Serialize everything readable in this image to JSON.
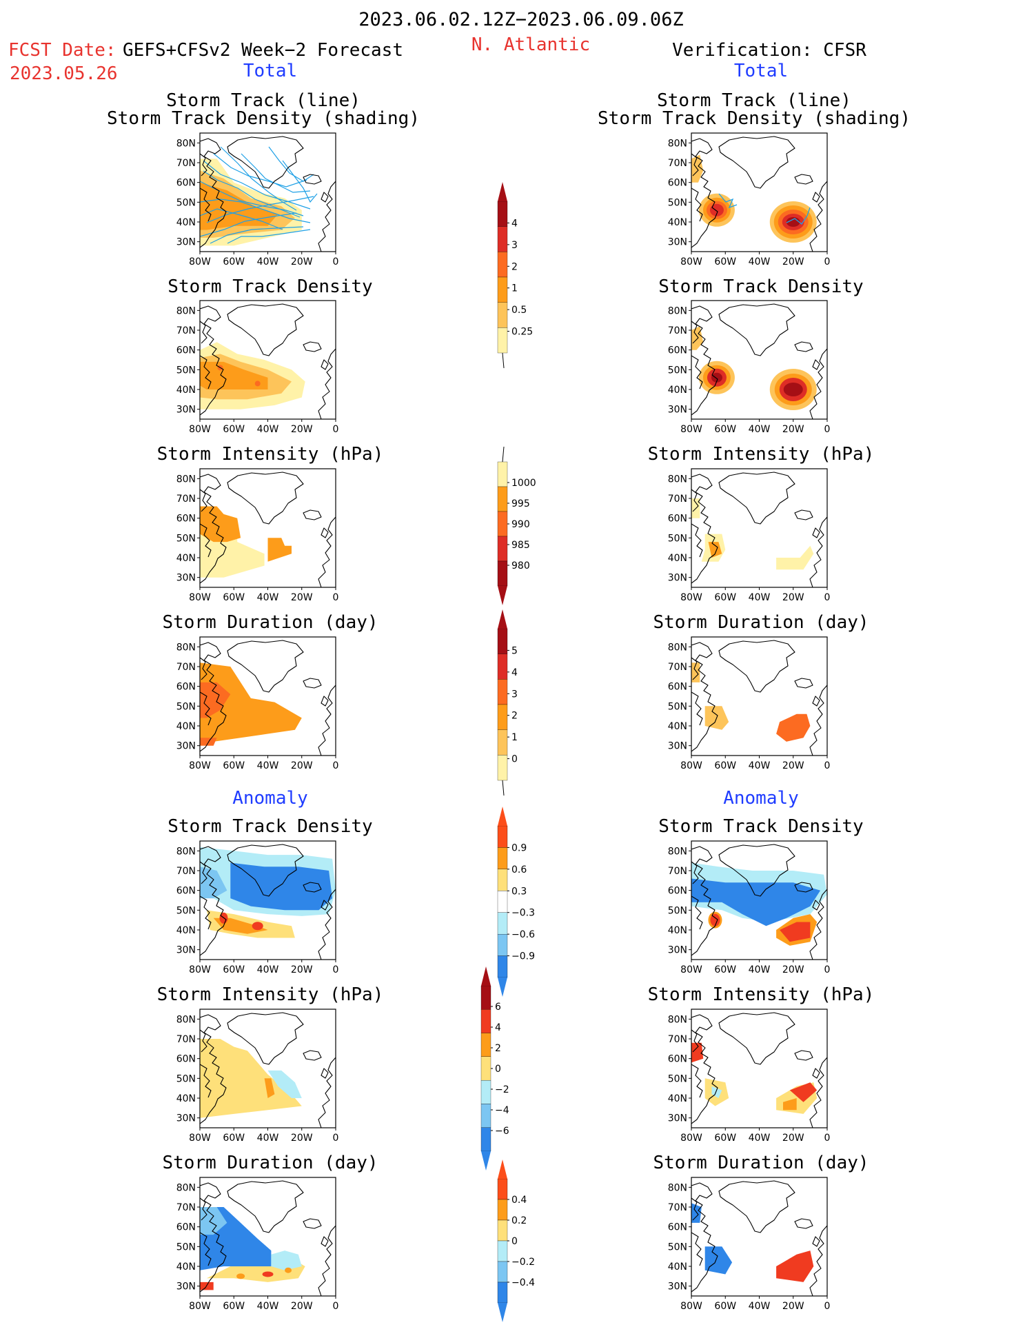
{
  "header": {
    "period": "2023.06.02.12Z−2023.06.09.06Z",
    "region": "N. Atlantic",
    "fcst_label": "FCST Date:",
    "fcst_model": "GEFS+CFSv2 Week−2 Forecast",
    "fcst_date": "2023.05.26",
    "verification": "Verification: CFSR"
  },
  "sections": {
    "total": "Total",
    "anomaly": "Anomaly"
  },
  "panel_titles": {
    "track_line": "Storm Track (line)",
    "track_shading": "Storm Track Density (shading)",
    "density": "Storm Track Density",
    "intensity": "Storm Intensity (hPa)",
    "duration": "Storm Duration (day)"
  },
  "map_axes": {
    "lat_labels": [
      "80N",
      "70N",
      "60N",
      "50N",
      "40N",
      "30N"
    ],
    "lon_labels": [
      "80W",
      "60W",
      "40W",
      "20W",
      "0"
    ]
  },
  "colorbars": {
    "density_total": {
      "labels": [
        "4",
        "3",
        "2",
        "1",
        "0.5",
        "0.25"
      ],
      "colors": [
        "#a50f15",
        "#de2d26",
        "#fc6b21",
        "#fd9c1a",
        "#fdc45a",
        "#fff2a8"
      ]
    },
    "intensity_total": {
      "labels": [
        "1000",
        "995",
        "990",
        "985",
        "980"
      ],
      "colors": [
        "#fff2a8",
        "#fd9c1a",
        "#fc6b21",
        "#de2d26",
        "#a50f15"
      ]
    },
    "duration_total": {
      "labels": [
        "5",
        "4",
        "3",
        "2",
        "1",
        "0"
      ],
      "colors": [
        "#a50f15",
        "#de2d26",
        "#fc6b21",
        "#fd9c1a",
        "#fdc45a",
        "#fff2a8"
      ]
    },
    "density_anom": {
      "labels": [
        "0.9",
        "0.6",
        "0.3",
        "−0.3",
        "−0.6",
        "−0.9"
      ],
      "colors": [
        "#fc4e1a",
        "#fd9c1a",
        "#fee07a",
        "#ffffff",
        "#b3ecf7",
        "#7cc6f2",
        "#2f86e8"
      ]
    },
    "intensity_anom": {
      "labels": [
        "6",
        "4",
        "2",
        "0",
        "−2",
        "−4",
        "−6"
      ],
      "colors": [
        "#a50f15",
        "#f03b20",
        "#fd9c1a",
        "#fee07a",
        "#b3ecf7",
        "#7cc6f2",
        "#2f86e8"
      ]
    },
    "duration_anom": {
      "labels": [
        "0.4",
        "0.2",
        "0",
        "−0.2",
        "−0.4"
      ],
      "colors": [
        "#fc4e1a",
        "#fd9c1a",
        "#fee07a",
        "#b3ecf7",
        "#7cc6f2",
        "#2f86e8"
      ]
    }
  },
  "palette": {
    "track_line": "#1ea0e6",
    "coast": "#000000"
  }
}
